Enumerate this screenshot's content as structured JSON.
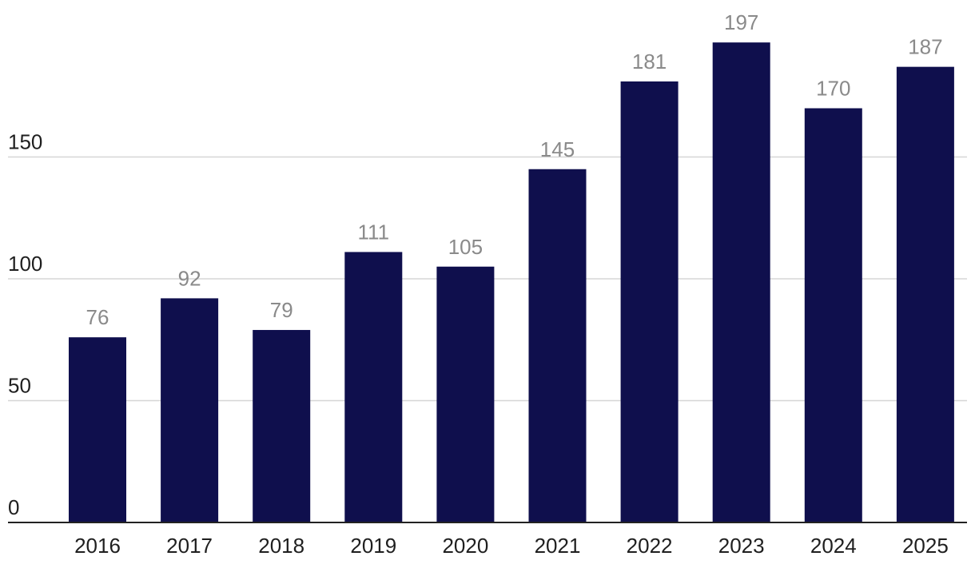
{
  "chart_data": {
    "type": "bar",
    "categories": [
      "2016",
      "2017",
      "2018",
      "2019",
      "2020",
      "2021",
      "2022",
      "2023",
      "2024",
      "2025"
    ],
    "values": [
      76,
      92,
      79,
      111,
      105,
      145,
      181,
      197,
      170,
      187
    ],
    "data_labels": [
      "76",
      "92",
      "79",
      "111",
      "105",
      "145",
      "181",
      "197",
      "170",
      "187"
    ],
    "ylim": [
      0,
      200
    ],
    "yticks": [
      0,
      50,
      100,
      150
    ],
    "ytick_labels": [
      "0",
      "50",
      "100",
      "150"
    ],
    "title": "",
    "xlabel": "",
    "ylabel": "",
    "grid": true,
    "bar_color": "#0f0f4d",
    "label_color": "#8a8a8a",
    "grid_color": "#d6d6d6",
    "axis_color": "#222222"
  }
}
